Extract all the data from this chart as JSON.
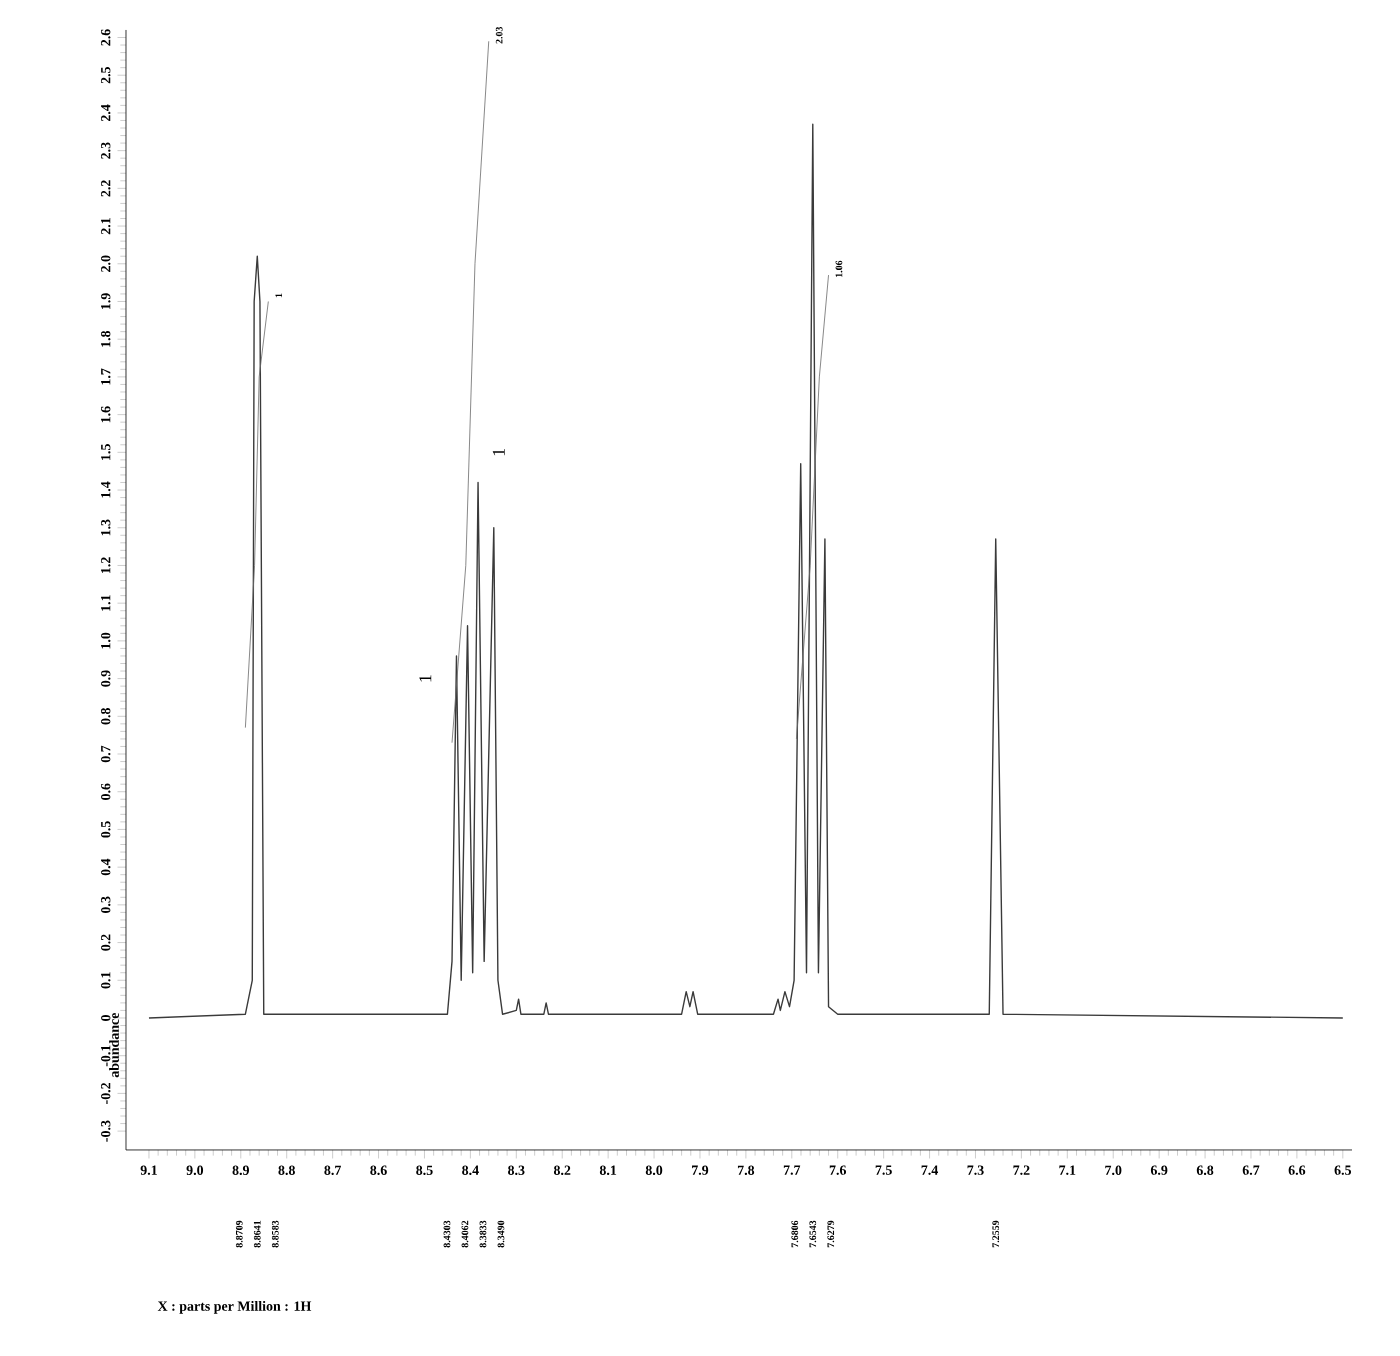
{
  "chart_data": {
    "type": "line",
    "ylabel": "abundance",
    "xlim": [
      9.15,
      6.48
    ],
    "ylim": [
      -0.35,
      2.62
    ],
    "xticks": [
      9.1,
      {
        "value": 9.0,
        "label": "9.0"
      },
      8.9,
      8.8,
      8.7,
      8.6,
      8.5,
      8.4,
      8.3,
      8.2,
      8.1,
      {
        "value": 8.0,
        "label": "8.0"
      },
      7.9,
      7.8,
      7.7,
      7.6,
      7.5,
      7.4,
      7.3,
      7.2,
      7.1,
      {
        "value": 7.0,
        "label": "7.0"
      },
      6.9,
      6.8,
      6.7,
      6.6,
      6.5
    ],
    "yticks": [
      -0.3,
      -0.2,
      -0.1,
      0,
      0.1,
      0.2,
      0.3,
      0.4,
      0.5,
      0.6,
      0.7,
      0.8,
      0.9,
      {
        "value": 1.0,
        "label": "1.0"
      },
      1.1,
      1.2,
      1.3,
      1.4,
      1.5,
      1.6,
      1.7,
      1.8,
      1.9,
      {
        "value": 2.0,
        "label": "2.0"
      },
      2.1,
      2.2,
      2.3,
      2.4,
      2.5,
      2.6
    ],
    "grid": false,
    "marker": "none",
    "line_style": "solid",
    "series": [
      {
        "color": "#3a3a3a",
        "x": [
          9.1,
          8.89,
          8.875,
          8.8709,
          8.8641,
          8.8583,
          8.85,
          8.45,
          8.44,
          8.4303,
          8.42,
          8.4062,
          8.395,
          8.3833,
          8.37,
          8.349,
          8.34,
          8.33,
          8.3,
          8.295,
          8.29,
          8.24,
          8.235,
          8.23,
          7.94,
          7.93,
          7.922,
          7.915,
          7.905,
          7.74,
          7.73,
          7.725,
          7.715,
          7.705,
          7.695,
          7.6806,
          7.668,
          7.6543,
          7.642,
          7.6279,
          7.62,
          7.6,
          7.27,
          7.2559,
          7.24,
          6.5
        ],
        "values": [
          0,
          0.01,
          0.1,
          1.9,
          2.02,
          1.9,
          0.01,
          0.01,
          0.15,
          0.96,
          0.1,
          1.04,
          0.12,
          1.42,
          0.15,
          1.3,
          0.1,
          0.01,
          0.02,
          0.05,
          0.01,
          0.01,
          0.04,
          0.01,
          0.01,
          0.07,
          0.03,
          0.07,
          0.01,
          0.01,
          0.05,
          0.02,
          0.07,
          0.03,
          0.1,
          1.47,
          0.12,
          2.37,
          0.12,
          1.27,
          0.03,
          0.01,
          0.01,
          1.27,
          0.01,
          0
        ]
      },
      {
        "color": "#6a6a6a",
        "x": [
          8.89,
          8.87,
          8.86,
          8.84
        ],
        "values": [
          0.77,
          1.2,
          1.7,
          1.9
        ]
      },
      {
        "color": "#6a6a6a",
        "x": [
          8.44,
          8.41,
          8.39,
          8.36
        ],
        "values": [
          0.73,
          1.2,
          2.0,
          2.59
        ]
      },
      {
        "color": "#6a6a6a",
        "x": [
          7.69,
          7.66,
          7.64,
          7.62
        ],
        "values": [
          0.74,
          1.2,
          1.7,
          1.97
        ]
      }
    ],
    "annotations": [
      "X : parts per Million : 1H",
      "1",
      "2.03",
      "1.06",
      "1",
      "1",
      "8.8709",
      "8.8641",
      "8.8583",
      "8.4303",
      "8.4062",
      "8.3833",
      "8.3490",
      "7.6806",
      "7.6543",
      "7.6279",
      "7.2559"
    ]
  }
}
